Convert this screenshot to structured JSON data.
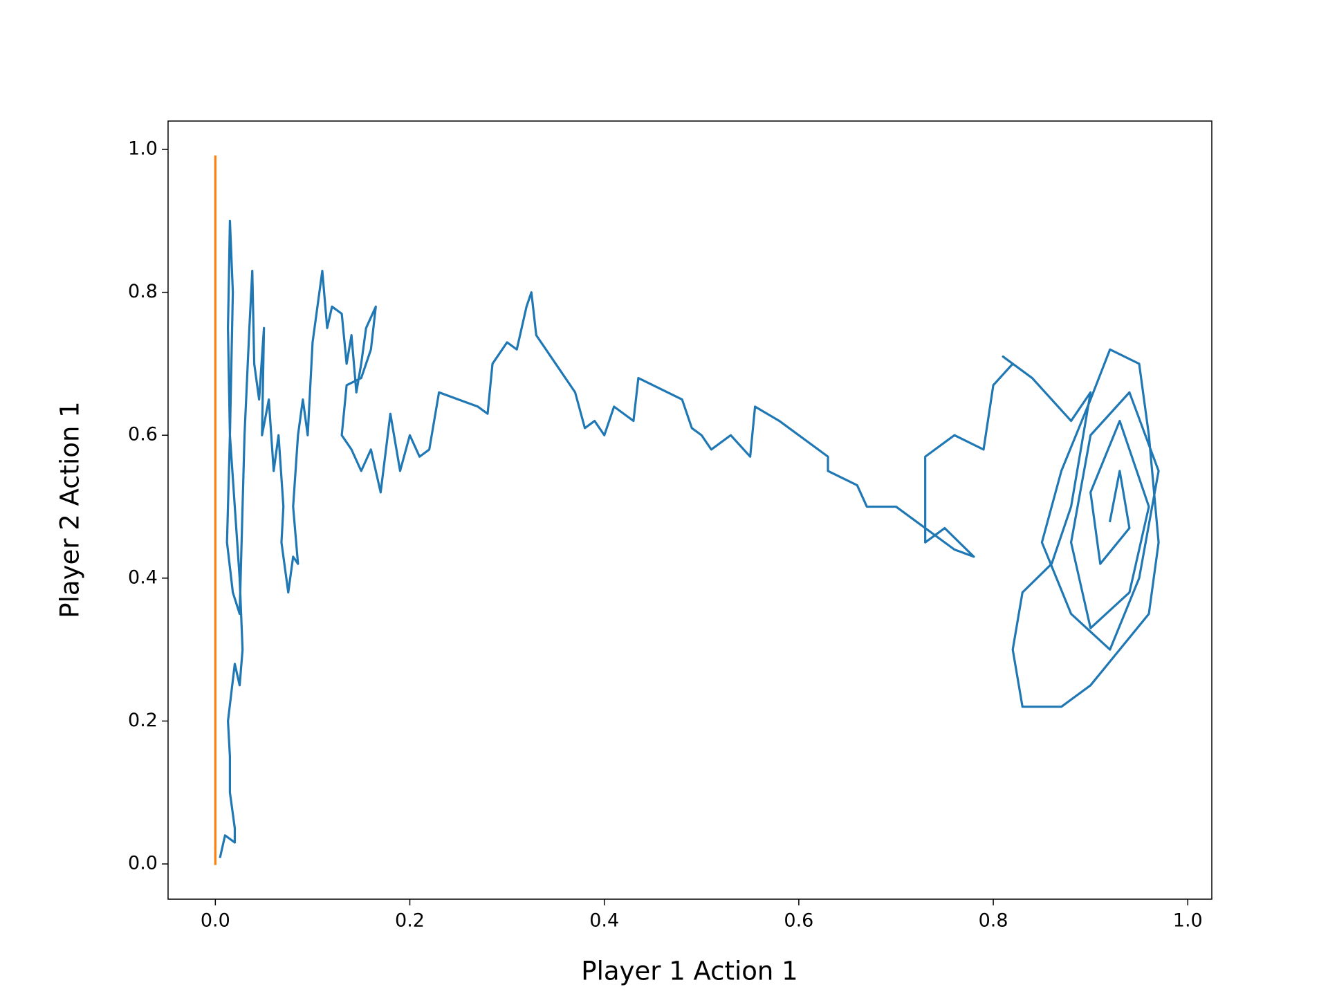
{
  "chart_data": {
    "type": "line",
    "xlabel": "Player 1 Action 1",
    "ylabel": "Player 2 Action 1",
    "xlim": [
      -0.0486,
      1.0247
    ],
    "ylim": [
      -0.0493,
      1.0397
    ],
    "xticks": [
      {
        "value": 0,
        "label": "0.0"
      },
      0.2,
      0.4,
      0.6,
      0.8,
      {
        "value": 1,
        "label": "1.0"
      }
    ],
    "yticks": [
      {
        "value": 0,
        "label": "0.0"
      },
      0.2,
      0.4,
      0.6,
      0.8,
      {
        "value": 1,
        "label": "1.0"
      }
    ],
    "grid": false,
    "series": [
      {
        "color": "#1f77b4",
        "x": [
          0.005,
          0.01,
          0.02,
          0.02,
          0.015,
          0.015,
          0.013,
          0.02,
          0.025,
          0.028,
          0.025,
          0.02,
          0.015,
          0.013,
          0.015,
          0.018,
          0.015,
          0.012,
          0.018,
          0.025,
          0.03,
          0.035,
          0.038,
          0.04,
          0.045,
          0.05,
          0.048,
          0.055,
          0.06,
          0.065,
          0.07,
          0.068,
          0.075,
          0.08,
          0.085,
          0.08,
          0.085,
          0.09,
          0.095,
          0.1,
          0.11,
          0.115,
          0.12,
          0.13,
          0.135,
          0.14,
          0.145,
          0.15,
          0.155,
          0.165,
          0.16,
          0.15,
          0.135,
          0.13,
          0.14,
          0.15,
          0.16,
          0.17,
          0.18,
          0.19,
          0.2,
          0.21,
          0.22,
          0.23,
          0.25,
          0.27,
          0.28,
          0.285,
          0.3,
          0.31,
          0.32,
          0.325,
          0.33,
          0.35,
          0.37,
          0.38,
          0.39,
          0.4,
          0.41,
          0.43,
          0.435,
          0.48,
          0.49,
          0.5,
          0.51,
          0.53,
          0.55,
          0.555,
          0.58,
          0.63,
          0.63,
          0.66,
          0.67,
          0.7,
          0.72,
          0.76,
          0.78,
          0.75,
          0.73,
          0.73,
          0.76,
          0.79,
          0.8,
          0.82,
          0.81,
          0.84,
          0.86,
          0.88,
          0.9,
          0.88,
          0.86,
          0.83,
          0.82,
          0.83,
          0.87,
          0.9,
          0.93,
          0.96,
          0.97,
          0.96,
          0.95,
          0.92,
          0.9,
          0.87,
          0.85,
          0.88,
          0.92,
          0.95,
          0.97,
          0.94,
          0.9,
          0.88,
          0.9,
          0.94,
          0.96,
          0.93,
          0.9,
          0.91,
          0.94,
          0.93,
          0.92
        ],
        "values": [
          0.01,
          0.04,
          0.03,
          0.05,
          0.1,
          0.15,
          0.2,
          0.28,
          0.25,
          0.3,
          0.4,
          0.5,
          0.6,
          0.75,
          0.9,
          0.8,
          0.6,
          0.45,
          0.38,
          0.35,
          0.6,
          0.75,
          0.83,
          0.7,
          0.65,
          0.75,
          0.6,
          0.65,
          0.55,
          0.6,
          0.5,
          0.45,
          0.38,
          0.43,
          0.42,
          0.5,
          0.6,
          0.65,
          0.6,
          0.73,
          0.83,
          0.75,
          0.78,
          0.77,
          0.7,
          0.74,
          0.66,
          0.7,
          0.75,
          0.78,
          0.72,
          0.68,
          0.67,
          0.6,
          0.58,
          0.55,
          0.58,
          0.52,
          0.63,
          0.55,
          0.6,
          0.57,
          0.58,
          0.66,
          0.65,
          0.64,
          0.63,
          0.7,
          0.73,
          0.72,
          0.78,
          0.8,
          0.74,
          0.7,
          0.66,
          0.61,
          0.62,
          0.6,
          0.64,
          0.62,
          0.68,
          0.65,
          0.61,
          0.6,
          0.58,
          0.6,
          0.57,
          0.64,
          0.62,
          0.57,
          0.55,
          0.53,
          0.5,
          0.5,
          0.48,
          0.44,
          0.43,
          0.47,
          0.45,
          0.57,
          0.6,
          0.58,
          0.67,
          0.7,
          0.71,
          0.68,
          0.65,
          0.62,
          0.66,
          0.5,
          0.42,
          0.38,
          0.3,
          0.22,
          0.22,
          0.25,
          0.3,
          0.35,
          0.45,
          0.6,
          0.7,
          0.72,
          0.65,
          0.55,
          0.45,
          0.35,
          0.3,
          0.4,
          0.55,
          0.66,
          0.6,
          0.45,
          0.33,
          0.38,
          0.5,
          0.62,
          0.52,
          0.42,
          0.47,
          0.55,
          0.48
        ]
      },
      {
        "color": "#ff7f0e",
        "x": [
          0,
          0
        ],
        "values": [
          0,
          0.99
        ]
      }
    ]
  }
}
